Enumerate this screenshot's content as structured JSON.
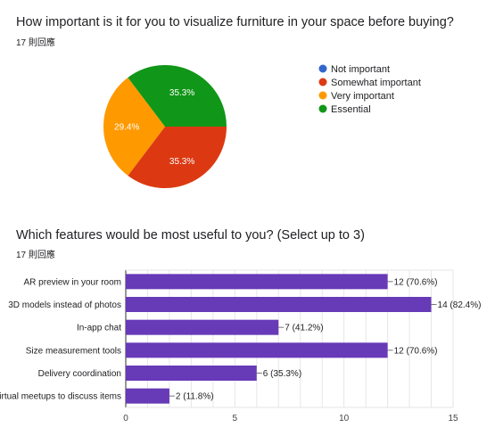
{
  "questions": [
    {
      "title": "How important is it for you to visualize furniture in your space before buying?",
      "responses": "17 則回應"
    },
    {
      "title": "Which features would be most useful to you? (Select up to 3)",
      "responses": "17 則回應"
    }
  ],
  "chart_data": [
    {
      "type": "pie",
      "categories": [
        "Not important",
        "Somewhat important",
        "Very important",
        "Essential"
      ],
      "values": [
        0,
        35.3,
        29.4,
        35.3
      ],
      "labels": [
        "",
        "35.3%",
        "29.4%",
        "35.3%"
      ],
      "colors": [
        "#3366cc",
        "#dc3912",
        "#ff9900",
        "#109618"
      ],
      "legend": "right"
    },
    {
      "type": "bar",
      "orientation": "horizontal",
      "categories": [
        "AR preview in your room",
        "3D models instead of photos",
        "In-app chat",
        "Size measurement tools",
        "Delivery coordination",
        "Virtual meetups to discuss items"
      ],
      "values": [
        12,
        14,
        7,
        12,
        6,
        2
      ],
      "labels": [
        "12 (70.6%)",
        "14 (82.4%)",
        "7 (41.2%)",
        "12 (70.6%)",
        "6 (35.3%)",
        "2 (11.8%)"
      ],
      "xlim": [
        0,
        15
      ],
      "xticks": [
        "0",
        "5",
        "10",
        "15"
      ],
      "color": "#673ab7",
      "grid": true
    }
  ]
}
